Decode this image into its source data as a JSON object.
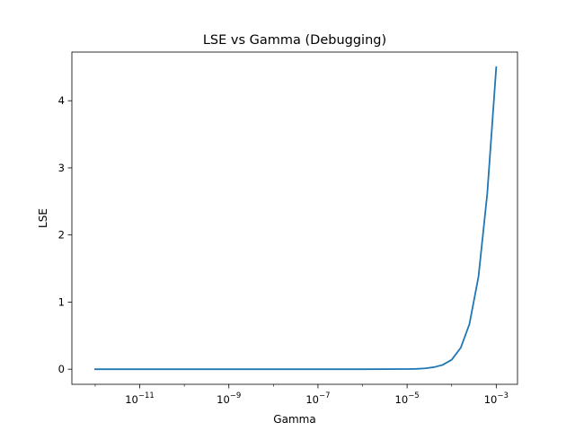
{
  "chart_data": {
    "type": "line",
    "title": "LSE vs Gamma (Debugging)",
    "xlabel": "Gamma",
    "ylabel": "LSE",
    "xscale": "log",
    "xlim": [
      3e-13,
      0.003
    ],
    "ylim": [
      -0.225,
      4.725
    ],
    "grid": false,
    "legend": "none",
    "x_ticks": [
      {
        "value": 1e-11,
        "label_base": "10",
        "label_exp": "−11"
      },
      {
        "value": 1e-09,
        "label_base": "10",
        "label_exp": "−9"
      },
      {
        "value": 1e-07,
        "label_base": "10",
        "label_exp": "−7"
      },
      {
        "value": 1e-05,
        "label_base": "10",
        "label_exp": "−5"
      },
      {
        "value": 0.001,
        "label_base": "10",
        "label_exp": "−3"
      }
    ],
    "y_ticks": [
      {
        "value": 0,
        "label": "0"
      },
      {
        "value": 1,
        "label": "1"
      },
      {
        "value": 2,
        "label": "2"
      },
      {
        "value": 3,
        "label": "3"
      },
      {
        "value": 4,
        "label": "4"
      }
    ],
    "series": [
      {
        "color": "#1f77b4",
        "x": [
          1e-12,
          1e-11,
          1e-10,
          1e-09,
          1e-08,
          1e-07,
          1e-06,
          1e-05,
          1.6e-05,
          2.5e-05,
          4e-05,
          6.3e-05,
          0.0001,
          0.00016,
          0.00025,
          0.0004,
          0.00063,
          0.001
        ],
        "y": [
          0,
          0,
          0,
          0,
          0,
          0,
          0,
          0.002,
          0.005,
          0.012,
          0.03,
          0.065,
          0.14,
          0.32,
          0.67,
          1.38,
          2.62,
          4.5
        ]
      }
    ]
  }
}
